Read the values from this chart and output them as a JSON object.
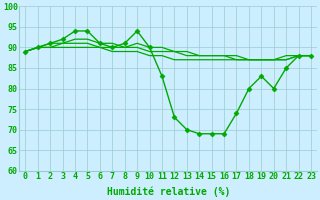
{
  "series": [
    {
      "x": [
        0,
        1,
        2,
        3,
        4,
        5,
        6,
        7,
        8,
        9,
        10,
        11,
        12,
        13,
        14,
        15,
        16,
        17,
        18,
        19,
        20,
        21,
        22,
        23
      ],
      "y": [
        89,
        90,
        91,
        92,
        94,
        94,
        91,
        90,
        91,
        94,
        90,
        83,
        73,
        70,
        69,
        69,
        69,
        74,
        80,
        83,
        80,
        85,
        88,
        88
      ],
      "marker": "D",
      "color": "#00aa00",
      "linewidth": 1.0,
      "markersize": 2.5
    },
    {
      "x": [
        0,
        1,
        2,
        3,
        4,
        5,
        6,
        7,
        8,
        9,
        10,
        11,
        12,
        13,
        14,
        15,
        16,
        17,
        18,
        19,
        20,
        21,
        22,
        23
      ],
      "y": [
        89,
        90,
        91,
        91,
        92,
        92,
        91,
        91,
        90,
        91,
        90,
        90,
        89,
        89,
        88,
        88,
        88,
        88,
        87,
        87,
        87,
        88,
        88,
        88
      ],
      "marker": null,
      "color": "#00aa00",
      "linewidth": 0.9,
      "markersize": 0
    },
    {
      "x": [
        0,
        1,
        2,
        3,
        4,
        5,
        6,
        7,
        8,
        9,
        10,
        11,
        12,
        13,
        14,
        15,
        16,
        17,
        18,
        19,
        20,
        21,
        22,
        23
      ],
      "y": [
        89,
        90,
        90,
        91,
        91,
        91,
        90,
        90,
        90,
        90,
        89,
        89,
        89,
        88,
        88,
        88,
        88,
        87,
        87,
        87,
        87,
        87,
        88,
        88
      ],
      "marker": null,
      "color": "#00aa00",
      "linewidth": 0.9,
      "markersize": 0
    },
    {
      "x": [
        0,
        1,
        2,
        3,
        4,
        5,
        6,
        7,
        8,
        9,
        10,
        11,
        12,
        13,
        14,
        15,
        16,
        17,
        18,
        19,
        20,
        21,
        22,
        23
      ],
      "y": [
        89,
        90,
        90,
        90,
        90,
        90,
        90,
        89,
        89,
        89,
        88,
        88,
        87,
        87,
        87,
        87,
        87,
        87,
        87,
        87,
        87,
        87,
        88,
        88
      ],
      "marker": null,
      "color": "#00aa00",
      "linewidth": 0.9,
      "markersize": 0
    }
  ],
  "xlabel": "Humidité relative (%)",
  "xlim": [
    -0.5,
    23.5
  ],
  "ylim": [
    60,
    100
  ],
  "yticks": [
    60,
    65,
    70,
    75,
    80,
    85,
    90,
    95,
    100
  ],
  "xticks": [
    0,
    1,
    2,
    3,
    4,
    5,
    6,
    7,
    8,
    9,
    10,
    11,
    12,
    13,
    14,
    15,
    16,
    17,
    18,
    19,
    20,
    21,
    22,
    23
  ],
  "xtick_labels": [
    "0",
    "1",
    "2",
    "3",
    "4",
    "5",
    "6",
    "7",
    "8",
    "9",
    "10",
    "11",
    "12",
    "13",
    "14",
    "15",
    "16",
    "17",
    "18",
    "19",
    "20",
    "21",
    "22",
    "23"
  ],
  "background_color": "#cceeff",
  "grid_color": "#99cccc",
  "line_color": "#00aa00",
  "xlabel_color": "#00aa00",
  "xlabel_fontsize": 7,
  "tick_fontsize": 6,
  "tick_color": "#00aa00"
}
